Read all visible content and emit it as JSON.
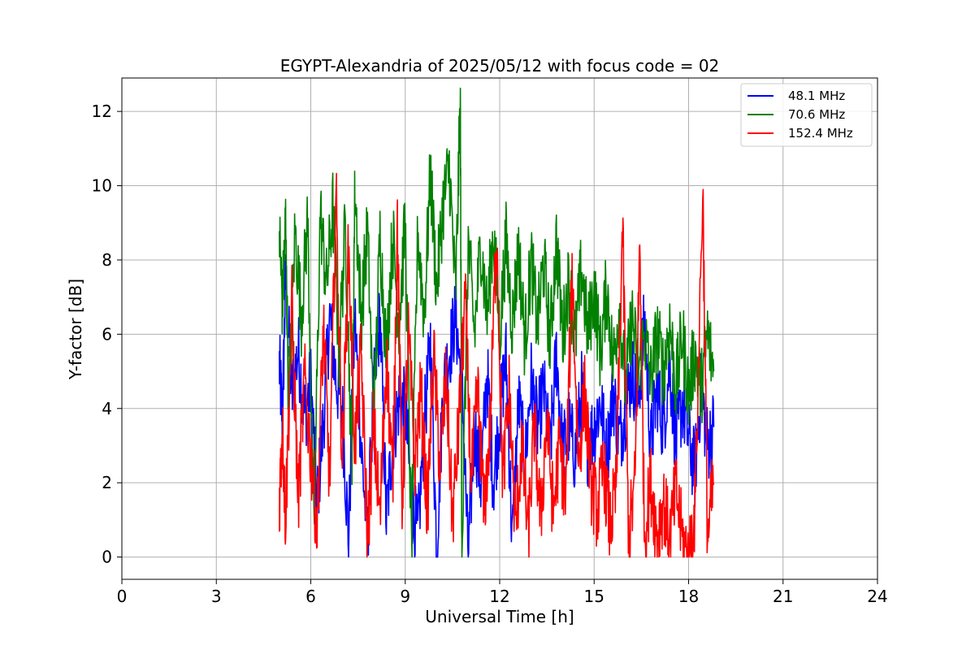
{
  "chart_data": {
    "type": "line",
    "title": "EGYPT-Alexandria of 2025/05/12 with focus code = 02",
    "xlabel": "Universal Time [h]",
    "ylabel": "Y-factor [dB]",
    "xlim": [
      0,
      24
    ],
    "ylim": [
      -0.6,
      12.9
    ],
    "xticks": [
      0,
      3,
      6,
      9,
      12,
      15,
      18,
      21,
      24
    ],
    "yticks": [
      0,
      2,
      4,
      6,
      8,
      10,
      12
    ],
    "grid": true,
    "legend_position": "top-right",
    "series": [
      {
        "name": "48.1 MHz",
        "color": "#0000ff",
        "points": [
          [
            5.0,
            5.2
          ],
          [
            5.1,
            3.7
          ],
          [
            5.2,
            7.6
          ],
          [
            5.4,
            4.3
          ],
          [
            5.6,
            5.6
          ],
          [
            5.8,
            3.8
          ],
          [
            6.0,
            4.7
          ],
          [
            6.2,
            1.5
          ],
          [
            6.4,
            3.6
          ],
          [
            6.6,
            6.5
          ],
          [
            6.8,
            4.8
          ],
          [
            7.0,
            4.0
          ],
          [
            7.2,
            0.4
          ],
          [
            7.4,
            6.5
          ],
          [
            7.6,
            3.0
          ],
          [
            7.8,
            0.5
          ],
          [
            8.0,
            4.4
          ],
          [
            8.2,
            6.5
          ],
          [
            8.4,
            1.0
          ],
          [
            8.6,
            3.2
          ],
          [
            8.8,
            4.2
          ],
          [
            9.0,
            4.0
          ],
          [
            9.2,
            1.5
          ],
          [
            9.4,
            0.5
          ],
          [
            9.6,
            3.5
          ],
          [
            9.8,
            5.8
          ],
          [
            10.0,
            0.2
          ],
          [
            10.2,
            4.5
          ],
          [
            10.4,
            5.5
          ],
          [
            10.6,
            6.5
          ],
          [
            10.8,
            4.6
          ],
          [
            11.0,
            0.0
          ],
          [
            11.2,
            3.5
          ],
          [
            11.4,
            2.0
          ],
          [
            11.6,
            5.0
          ],
          [
            11.8,
            2.0
          ],
          [
            12.0,
            3.8
          ],
          [
            12.2,
            5.4
          ],
          [
            12.4,
            0.4
          ],
          [
            12.6,
            4.2
          ],
          [
            12.8,
            2.5
          ],
          [
            13.0,
            4.8
          ],
          [
            13.2,
            3.5
          ],
          [
            13.4,
            4.5
          ],
          [
            13.6,
            2.8
          ],
          [
            13.8,
            5.5
          ],
          [
            14.0,
            2.8
          ],
          [
            14.2,
            3.5
          ],
          [
            14.4,
            2.7
          ],
          [
            14.6,
            4.5
          ],
          [
            14.8,
            3.0
          ],
          [
            15.0,
            3.5
          ],
          [
            15.2,
            4.2
          ],
          [
            15.4,
            2.7
          ],
          [
            15.6,
            4.5
          ],
          [
            15.8,
            3.2
          ],
          [
            16.0,
            4.0
          ],
          [
            16.2,
            5.0
          ],
          [
            16.4,
            4.2
          ],
          [
            16.6,
            6.3
          ],
          [
            16.8,
            3.0
          ],
          [
            17.0,
            4.5
          ],
          [
            17.2,
            3.5
          ],
          [
            17.4,
            5.2
          ],
          [
            17.6,
            3.0
          ],
          [
            17.8,
            4.2
          ],
          [
            18.0,
            3.2
          ],
          [
            18.2,
            2.3
          ],
          [
            18.4,
            4.6
          ],
          [
            18.6,
            3.0
          ],
          [
            18.8,
            3.5
          ]
        ]
      },
      {
        "name": "70.6 MHz",
        "color": "#008000",
        "points": [
          [
            5.0,
            8.8
          ],
          [
            5.1,
            6.8
          ],
          [
            5.2,
            9.0
          ],
          [
            5.3,
            4.0
          ],
          [
            5.5,
            8.8
          ],
          [
            5.7,
            6.5
          ],
          [
            5.9,
            9.1
          ],
          [
            6.1,
            0.4
          ],
          [
            6.3,
            9.3
          ],
          [
            6.5,
            7.3
          ],
          [
            6.7,
            9.4
          ],
          [
            6.9,
            5.5
          ],
          [
            7.1,
            9.0
          ],
          [
            7.3,
            2.5
          ],
          [
            7.4,
            10.0
          ],
          [
            7.6,
            6.5
          ],
          [
            7.8,
            8.8
          ],
          [
            8.0,
            3.5
          ],
          [
            8.2,
            8.7
          ],
          [
            8.4,
            5.5
          ],
          [
            8.6,
            8.7
          ],
          [
            8.8,
            6.3
          ],
          [
            9.0,
            9.0
          ],
          [
            9.2,
            0.2
          ],
          [
            9.4,
            8.8
          ],
          [
            9.6,
            6.5
          ],
          [
            9.8,
            10.3
          ],
          [
            10.0,
            7.2
          ],
          [
            10.2,
            9.5
          ],
          [
            10.4,
            10.5
          ],
          [
            10.6,
            7.0
          ],
          [
            10.75,
            12.3
          ],
          [
            10.8,
            0.0
          ],
          [
            11.0,
            8.5
          ],
          [
            11.2,
            6.0
          ],
          [
            11.4,
            8.5
          ],
          [
            11.6,
            6.5
          ],
          [
            11.8,
            8.8
          ],
          [
            12.0,
            6.0
          ],
          [
            12.2,
            8.5
          ],
          [
            12.4,
            6.3
          ],
          [
            12.6,
            8.3
          ],
          [
            12.8,
            5.8
          ],
          [
            13.0,
            8.0
          ],
          [
            13.2,
            6.2
          ],
          [
            13.4,
            8.0
          ],
          [
            13.6,
            5.8
          ],
          [
            13.8,
            8.5
          ],
          [
            14.0,
            6.0
          ],
          [
            14.2,
            7.5
          ],
          [
            14.4,
            5.8
          ],
          [
            14.6,
            7.8
          ],
          [
            14.8,
            6.0
          ],
          [
            15.0,
            7.2
          ],
          [
            15.2,
            5.5
          ],
          [
            15.4,
            7.3
          ],
          [
            15.6,
            5.2
          ],
          [
            15.8,
            6.8
          ],
          [
            16.0,
            4.5
          ],
          [
            16.2,
            6.5
          ],
          [
            16.4,
            5.0
          ],
          [
            16.6,
            6.0
          ],
          [
            16.8,
            4.8
          ],
          [
            17.0,
            6.0
          ],
          [
            17.2,
            5.0
          ],
          [
            17.4,
            6.3
          ],
          [
            17.6,
            4.6
          ],
          [
            17.8,
            6.0
          ],
          [
            18.0,
            4.4
          ],
          [
            18.2,
            5.5
          ],
          [
            18.4,
            4.5
          ],
          [
            18.6,
            6.0
          ],
          [
            18.8,
            5.0
          ]
        ]
      },
      {
        "name": "152.4 MHz",
        "color": "#ff0000",
        "points": [
          [
            5.0,
            1.5
          ],
          [
            5.1,
            3.5
          ],
          [
            5.2,
            1.0
          ],
          [
            5.4,
            6.8
          ],
          [
            5.6,
            1.5
          ],
          [
            5.8,
            4.8
          ],
          [
            6.0,
            2.8
          ],
          [
            6.2,
            0.8
          ],
          [
            6.4,
            6.3
          ],
          [
            6.6,
            2.0
          ],
          [
            6.8,
            9.8
          ],
          [
            7.0,
            2.5
          ],
          [
            7.2,
            8.3
          ],
          [
            7.4,
            3.0
          ],
          [
            7.6,
            5.5
          ],
          [
            7.8,
            0.5
          ],
          [
            8.0,
            3.5
          ],
          [
            8.2,
            1.0
          ],
          [
            8.4,
            5.5
          ],
          [
            8.6,
            2.0
          ],
          [
            8.75,
            9.0
          ],
          [
            8.9,
            1.5
          ],
          [
            9.1,
            6.0
          ],
          [
            9.3,
            2.5
          ],
          [
            9.5,
            4.5
          ],
          [
            9.7,
            1.2
          ],
          [
            9.9,
            5.5
          ],
          [
            10.1,
            2.5
          ],
          [
            10.3,
            4.8
          ],
          [
            10.5,
            1.0
          ],
          [
            10.7,
            3.5
          ],
          [
            10.9,
            7.0
          ],
          [
            11.1,
            2.0
          ],
          [
            11.3,
            4.5
          ],
          [
            11.5,
            1.2
          ],
          [
            11.7,
            3.5
          ],
          [
            11.9,
            9.0
          ],
          [
            12.1,
            2.0
          ],
          [
            12.3,
            4.5
          ],
          [
            12.5,
            0.8
          ],
          [
            12.7,
            3.0
          ],
          [
            12.9,
            0.6
          ],
          [
            13.1,
            3.5
          ],
          [
            13.3,
            1.0
          ],
          [
            13.5,
            3.8
          ],
          [
            13.7,
            1.2
          ],
          [
            13.9,
            3.0
          ],
          [
            14.1,
            1.5
          ],
          [
            14.3,
            7.8
          ],
          [
            14.5,
            2.5
          ],
          [
            14.7,
            4.5
          ],
          [
            14.9,
            2.0
          ],
          [
            15.1,
            1.2
          ],
          [
            15.3,
            2.5
          ],
          [
            15.5,
            0.8
          ],
          [
            15.7,
            1.8
          ],
          [
            15.9,
            8.9
          ],
          [
            16.1,
            0.5
          ],
          [
            16.3,
            2.0
          ],
          [
            16.45,
            8.6
          ],
          [
            16.6,
            0.6
          ],
          [
            16.8,
            2.0
          ],
          [
            17.0,
            0.6
          ],
          [
            17.2,
            1.5
          ],
          [
            17.4,
            0.5
          ],
          [
            17.6,
            1.8
          ],
          [
            17.8,
            0.5
          ],
          [
            18.0,
            0.0
          ],
          [
            18.2,
            1.2
          ],
          [
            18.45,
            10.0
          ],
          [
            18.6,
            0.5
          ],
          [
            18.8,
            2.0
          ]
        ]
      }
    ]
  }
}
